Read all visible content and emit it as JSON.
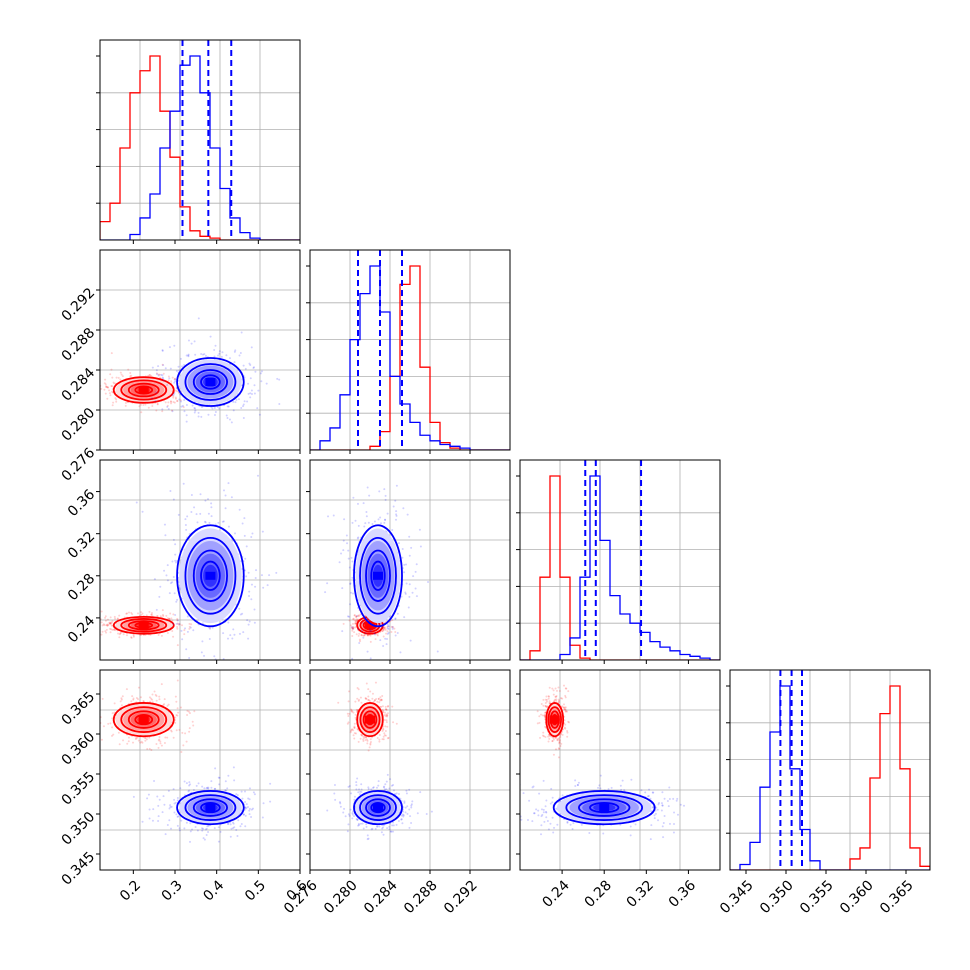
{
  "chart_data": {
    "type": "corner",
    "grid": true,
    "colors": {
      "red": "#ff0000",
      "blue": "#0000ff"
    },
    "params": [
      {
        "range": [
          0.12,
          0.6
        ],
        "ticks": [
          0.2,
          0.3,
          0.4,
          0.5,
          0.6
        ],
        "tick_labels": [
          "0.2",
          "0.3",
          "0.4",
          "0.5",
          "0.6"
        ]
      },
      {
        "range": [
          0.276,
          0.296
        ],
        "ticks": [
          0.276,
          0.28,
          0.284,
          0.288,
          0.292
        ],
        "tick_labels": [
          "0.276",
          "0.280",
          "0.284",
          "0.288",
          "0.292"
        ]
      },
      {
        "range": [
          0.2,
          0.39
        ],
        "ticks": [
          0.24,
          0.28,
          0.32,
          0.36
        ],
        "tick_labels": [
          "0.24",
          "0.28",
          "0.32",
          "0.36"
        ]
      },
      {
        "range": [
          0.343,
          0.368
        ],
        "ticks": [
          0.345,
          0.35,
          0.355,
          0.36,
          0.365
        ],
        "tick_labels": [
          "0.345",
          "0.350",
          "0.355",
          "0.360",
          "0.365"
        ]
      }
    ],
    "series": [
      {
        "color": "red",
        "mean": [
          0.225,
          0.282,
          0.233,
          0.3618
        ],
        "sd": [
          0.045,
          0.0008,
          0.005,
          0.0013
        ],
        "hist_values": [
          [
            0.1,
            0.2,
            0.5,
            0.8,
            0.92,
            1.0,
            0.7,
            0.45,
            0.18,
            0.05,
            0.02,
            0.01,
            0,
            0,
            0,
            0,
            0,
            0,
            0,
            0
          ],
          [
            0,
            0,
            0,
            0,
            0,
            0,
            0.02,
            0.1,
            0.4,
            0.9,
            1.0,
            0.45,
            0.15,
            0.04,
            0.01,
            0,
            0,
            0,
            0,
            0
          ],
          [
            0,
            0.05,
            0.45,
            1.0,
            0.45,
            0.08,
            0.01,
            0,
            0,
            0,
            0,
            0,
            0,
            0,
            0,
            0,
            0,
            0,
            0,
            0
          ],
          [
            0,
            0,
            0,
            0,
            0,
            0,
            0,
            0,
            0,
            0,
            0,
            0,
            0.06,
            0.12,
            0.5,
            0.85,
            1.0,
            0.55,
            0.12,
            0.02
          ]
        ]
      },
      {
        "color": "blue",
        "mean": [
          0.385,
          0.2828,
          0.28,
          0.3508
        ],
        "sd": [
          0.05,
          0.0015,
          0.03,
          0.0013
        ],
        "quantiles": [
          [
            0.318,
            0.38,
            0.435
          ],
          [
            0.2808,
            0.283,
            0.2852
          ],
          [
            0.262,
            0.272,
            0.315
          ],
          [
            0.3493,
            0.3507,
            0.352
          ]
        ],
        "hist_values": [
          [
            0,
            0,
            0,
            0.03,
            0.12,
            0.25,
            0.5,
            0.7,
            0.95,
            1.0,
            0.8,
            0.5,
            0.28,
            0.12,
            0.04,
            0.01,
            0,
            0,
            0,
            0
          ],
          [
            0,
            0.05,
            0.12,
            0.3,
            0.6,
            0.85,
            1.0,
            0.75,
            0.4,
            0.25,
            0.15,
            0.08,
            0.05,
            0.03,
            0.02,
            0.01,
            0,
            0,
            0,
            0
          ],
          [
            0,
            0,
            0,
            0,
            0.03,
            0.12,
            0.45,
            1.0,
            0.65,
            0.35,
            0.25,
            0.2,
            0.15,
            0.1,
            0.07,
            0.05,
            0.03,
            0.02,
            0.01,
            0
          ],
          [
            0,
            0.03,
            0.15,
            0.45,
            0.75,
            1.0,
            0.55,
            0.22,
            0.05,
            0,
            0,
            0,
            0,
            0,
            0,
            0,
            0,
            0,
            0,
            0
          ]
        ]
      }
    ]
  }
}
